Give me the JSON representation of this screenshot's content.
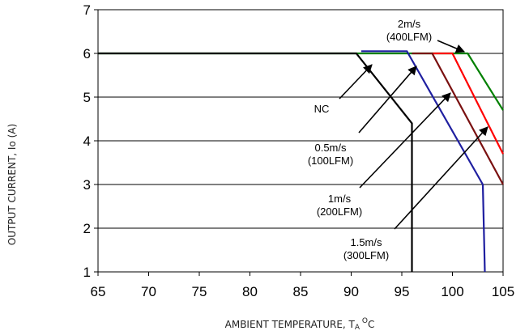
{
  "chart_data": {
    "type": "line",
    "title": "",
    "xlabel": "AMBIENT TEMPERATURE, T",
    "xlabel_sub": "A",
    "xlabel_sup": "O",
    "xlabel_unit": "C",
    "ylabel": "OUTPUT CURRENT, Io  (A)",
    "xlim": [
      65,
      105
    ],
    "ylim": [
      1,
      7
    ],
    "x_ticks": [
      "65",
      "70",
      "75",
      "80",
      "85",
      "90",
      "95",
      "100",
      "105"
    ],
    "y_ticks": [
      "1",
      "2",
      "3",
      "4",
      "5",
      "6",
      "7"
    ],
    "grid": "horizontal",
    "series": [
      {
        "name": "NC",
        "color": "#000000",
        "points": [
          [
            65,
            6
          ],
          [
            90.5,
            6
          ],
          [
            96,
            4.4
          ],
          [
            96,
            1
          ]
        ]
      },
      {
        "name": "0.5m/s (100LFM)",
        "color": "#1f1fa0",
        "points": [
          [
            91,
            6.05
          ],
          [
            95.5,
            6.05
          ],
          [
            103,
            3
          ],
          [
            103.2,
            1
          ]
        ]
      },
      {
        "name": "1m/s (200LFM)",
        "color": "#7a1010",
        "points": [
          [
            96,
            6
          ],
          [
            98,
            6
          ],
          [
            105,
            3
          ]
        ]
      },
      {
        "name": "1.5m/s (300LFM)",
        "color": "#ff0000",
        "points": [
          [
            98,
            6
          ],
          [
            100,
            6
          ],
          [
            105,
            3.7
          ]
        ]
      },
      {
        "name": "2m/s (400LFM)",
        "color": "#008000",
        "points": [
          [
            65,
            6
          ],
          [
            101.5,
            6
          ],
          [
            105,
            4.7
          ]
        ]
      }
    ],
    "annotations": [
      {
        "lines": [
          "2m/s",
          "(400LFM)"
        ]
      },
      {
        "lines": [
          "NC"
        ]
      },
      {
        "lines": [
          "0.5m/s",
          "(100LFM)"
        ]
      },
      {
        "lines": [
          "1m/s",
          "(200LFM)"
        ]
      },
      {
        "lines": [
          "1.5m/s",
          "(300LFM)"
        ]
      }
    ]
  }
}
